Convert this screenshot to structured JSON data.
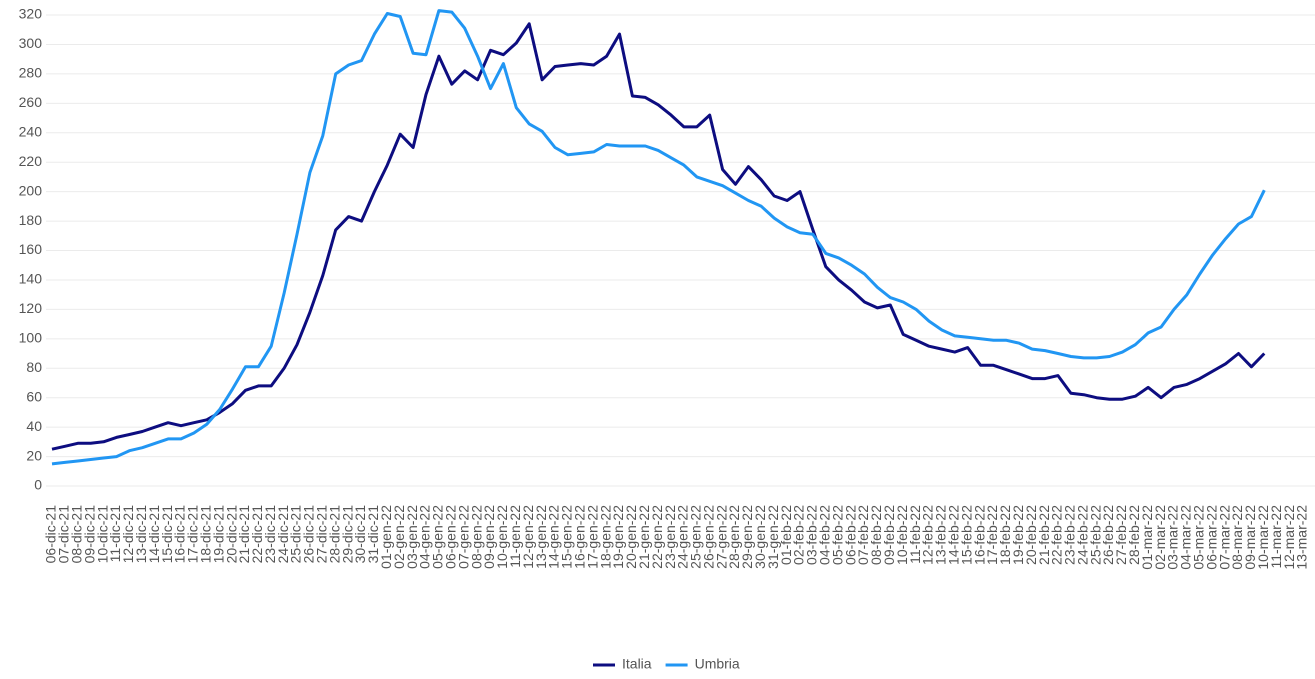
{
  "chart_data": {
    "type": "line",
    "categories": [
      "06-dic-21",
      "07-dic-21",
      "08-dic-21",
      "09-dic-21",
      "10-dic-21",
      "11-dic-21",
      "12-dic-21",
      "13-dic-21",
      "14-dic-21",
      "15-dic-21",
      "16-dic-21",
      "17-dic-21",
      "18-dic-21",
      "19-dic-21",
      "20-dic-21",
      "21-dic-21",
      "22-dic-21",
      "23-dic-21",
      "24-dic-21",
      "25-dic-21",
      "26-dic-21",
      "27-dic-21",
      "28-dic-21",
      "29-dic-21",
      "30-dic-21",
      "31-dic-21",
      "01-gen-22",
      "02-gen-22",
      "03-gen-22",
      "04-gen-22",
      "05-gen-22",
      "06-gen-22",
      "07-gen-22",
      "08-gen-22",
      "09-gen-22",
      "10-gen-22",
      "11-gen-22",
      "12-gen-22",
      "13-gen-22",
      "14-gen-22",
      "15-gen-22",
      "16-gen-22",
      "17-gen-22",
      "18-gen-22",
      "19-gen-22",
      "20-gen-22",
      "21-gen-22",
      "22-gen-22",
      "23-gen-22",
      "24-gen-22",
      "25-gen-22",
      "26-gen-22",
      "27-gen-22",
      "28-gen-22",
      "29-gen-22",
      "30-gen-22",
      "31-gen-22",
      "01-feb-22",
      "02-feb-22",
      "03-feb-22",
      "04-feb-22",
      "05-feb-22",
      "06-feb-22",
      "07-feb-22",
      "08-feb-22",
      "09-feb-22",
      "10-feb-22",
      "11-feb-22",
      "12-feb-22",
      "13-feb-22",
      "14-feb-22",
      "15-feb-22",
      "16-feb-22",
      "17-feb-22",
      "18-feb-22",
      "19-feb-22",
      "20-feb-22",
      "21-feb-22",
      "22-feb-22",
      "23-feb-22",
      "24-feb-22",
      "25-feb-22",
      "26-feb-22",
      "27-feb-22",
      "28-feb-22",
      "01-mar-22",
      "02-mar-22",
      "03-mar-22",
      "04-mar-22",
      "05-mar-22",
      "06-mar-22",
      "07-mar-22",
      "08-mar-22",
      "09-mar-22",
      "10-mar-22",
      "11-mar-22",
      "12-mar-22",
      "13-mar-22"
    ],
    "series": [
      {
        "name": "Italia",
        "color": "#0d0d80",
        "values": [
          25,
          27,
          29,
          29,
          30,
          33,
          35,
          37,
          40,
          43,
          41,
          43,
          45,
          50,
          56,
          65,
          68,
          68,
          80,
          96,
          118,
          143,
          174,
          183,
          180,
          200,
          218,
          239,
          230,
          266,
          292,
          273,
          282,
          276,
          296,
          293,
          301,
          314,
          276,
          285,
          286,
          287,
          286,
          292,
          307,
          265,
          264,
          259,
          252,
          244,
          244,
          252,
          215,
          205,
          217,
          208,
          197,
          194,
          200,
          174,
          149,
          140,
          133,
          125,
          121,
          123,
          103,
          99,
          95,
          93,
          91,
          94,
          82,
          82,
          79,
          76,
          73,
          73,
          75,
          63,
          62,
          60,
          59,
          59,
          61,
          67,
          60,
          67,
          69,
          73,
          78,
          83,
          90,
          81,
          90,
          null,
          null,
          null
        ]
      },
      {
        "name": "Umbria",
        "color": "#2196f3",
        "values": [
          15,
          16,
          17,
          18,
          19,
          20,
          24,
          26,
          29,
          32,
          32,
          36,
          42,
          52,
          66,
          81,
          81,
          95,
          131,
          171,
          213,
          238,
          280,
          286,
          289,
          307,
          321,
          319,
          294,
          293,
          323,
          322,
          311,
          292,
          270,
          287,
          257,
          246,
          241,
          230,
          225,
          226,
          227,
          232,
          231,
          231,
          231,
          228,
          223,
          218,
          210,
          207,
          204,
          199,
          194,
          190,
          182,
          176,
          172,
          171,
          158,
          155,
          150,
          144,
          135,
          128,
          125,
          120,
          112,
          106,
          102,
          101,
          100,
          99,
          99,
          97,
          93,
          92,
          90,
          88,
          87,
          87,
          88,
          91,
          96,
          104,
          108,
          120,
          130,
          144,
          157,
          168,
          178,
          183,
          201,
          null,
          null,
          null
        ]
      }
    ],
    "ylim": [
      0,
      320
    ],
    "yticks": [
      0,
      20,
      40,
      60,
      80,
      100,
      120,
      140,
      160,
      180,
      200,
      220,
      240,
      260,
      280,
      300,
      320
    ],
    "grid": true,
    "legend": "bottom"
  }
}
